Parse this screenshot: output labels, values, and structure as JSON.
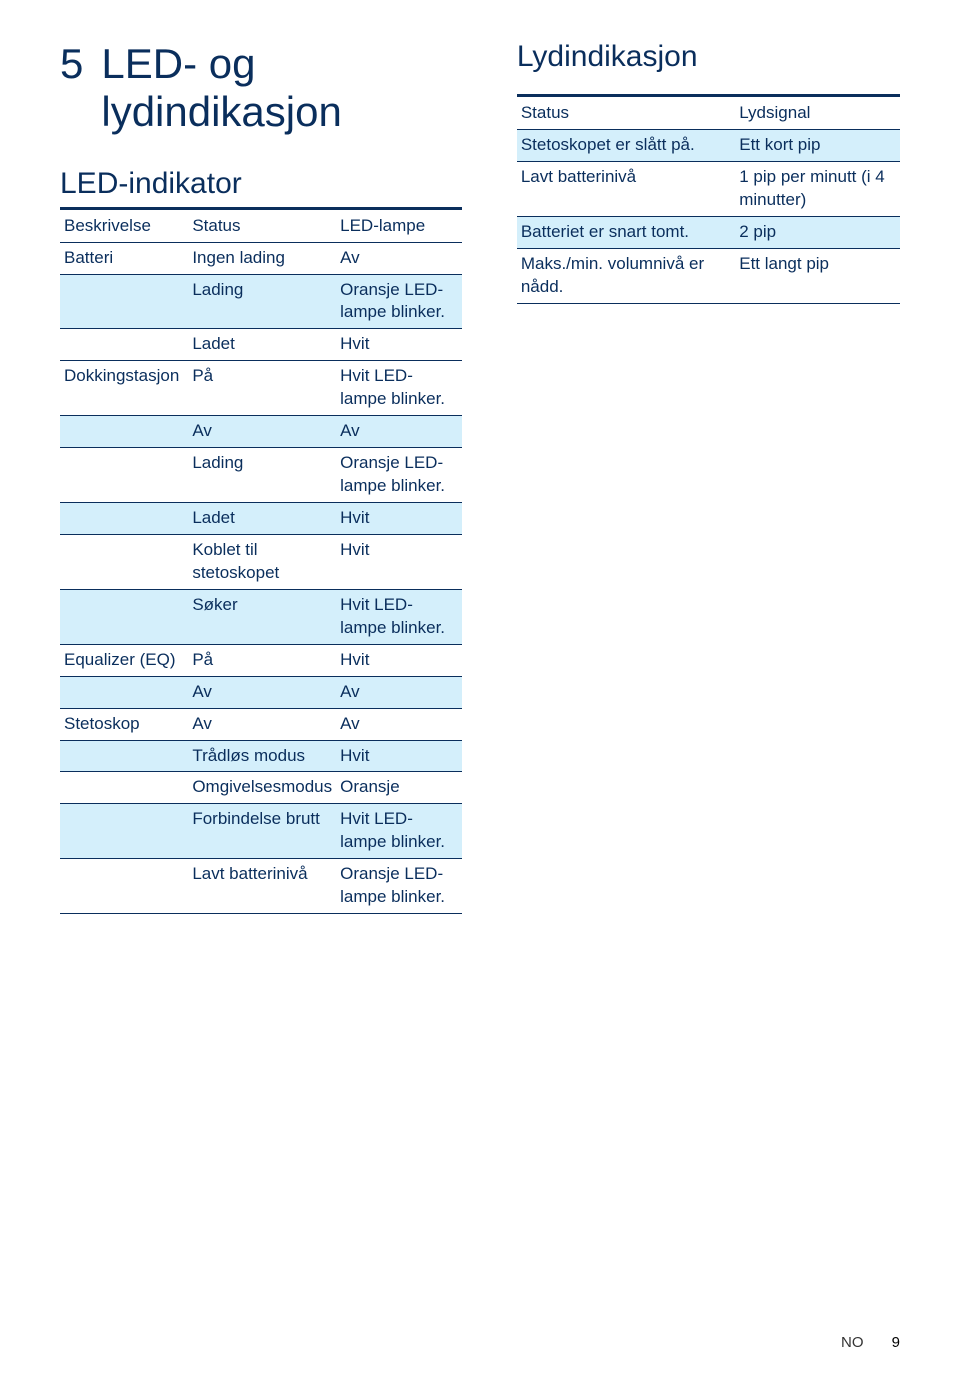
{
  "colors": {
    "text": "#0a2e5c",
    "shade": "#d4effb",
    "rule": "#0a2e5c",
    "background": "#ffffff"
  },
  "typography": {
    "section_num_fontsize": 42,
    "section_title_fontsize": 42,
    "subtitle_fontsize": 30,
    "body_fontsize": 17,
    "footer_fontsize": 15
  },
  "section": {
    "number": "5",
    "title": "LED- og lydindikasjon",
    "subtitle": "LED-indikator"
  },
  "led_table": {
    "headers": [
      "Beskrivelse",
      "Status",
      "LED-lampe"
    ],
    "rows": [
      {
        "c": [
          "Batteri",
          "Ingen lading",
          "Av"
        ],
        "shade": false
      },
      {
        "c": [
          "",
          "Lading",
          "Oransje LED-lampe blinker."
        ],
        "shade": true
      },
      {
        "c": [
          "",
          "Ladet",
          "Hvit"
        ],
        "shade": false
      },
      {
        "c": [
          "Dokkingstasjon",
          "På",
          "Hvit LED-lampe blinker."
        ],
        "shade": false
      },
      {
        "c": [
          "",
          "Av",
          "Av"
        ],
        "shade": true
      },
      {
        "c": [
          "",
          "Lading",
          "Oransje LED-lampe blinker."
        ],
        "shade": false
      },
      {
        "c": [
          "",
          "Ladet",
          "Hvit"
        ],
        "shade": true
      },
      {
        "c": [
          "",
          "Koblet til stetoskopet",
          "Hvit"
        ],
        "shade": false
      },
      {
        "c": [
          "",
          "Søker",
          "Hvit LED-lampe blinker."
        ],
        "shade": true
      },
      {
        "c": [
          "Equalizer (EQ)",
          "På",
          "Hvit"
        ],
        "shade": false
      },
      {
        "c": [
          "",
          "Av",
          "Av"
        ],
        "shade": true
      },
      {
        "c": [
          "Stetoskop",
          "Av",
          "Av"
        ],
        "shade": false
      },
      {
        "c": [
          "",
          "Trådløs modus",
          "Hvit"
        ],
        "shade": true
      },
      {
        "c": [
          "",
          "Omgivelsesmodus",
          "Oransje"
        ],
        "shade": false
      },
      {
        "c": [
          "",
          "Forbindelse brutt",
          "Hvit LED-lampe blinker."
        ],
        "shade": true
      },
      {
        "c": [
          "",
          "Lavt batterinivå",
          "Oransje LED-lampe blinker."
        ],
        "shade": false
      }
    ]
  },
  "right": {
    "title": "Lydindikasjon"
  },
  "sound_table": {
    "headers": [
      "Status",
      "Lydsignal"
    ],
    "rows": [
      {
        "c": [
          "Stetoskopet er slått på.",
          "Ett kort pip"
        ],
        "shade": true
      },
      {
        "c": [
          "Lavt batterinivå",
          "1 pip per minutt (i 4 minutter)"
        ],
        "shade": false
      },
      {
        "c": [
          "Batteriet er snart tomt.",
          "2 pip"
        ],
        "shade": true
      },
      {
        "c": [
          "Maks./min. volumnivå er nådd.",
          "Ett langt pip"
        ],
        "shade": false
      }
    ]
  },
  "footer": {
    "lang": "NO",
    "page": "9"
  }
}
